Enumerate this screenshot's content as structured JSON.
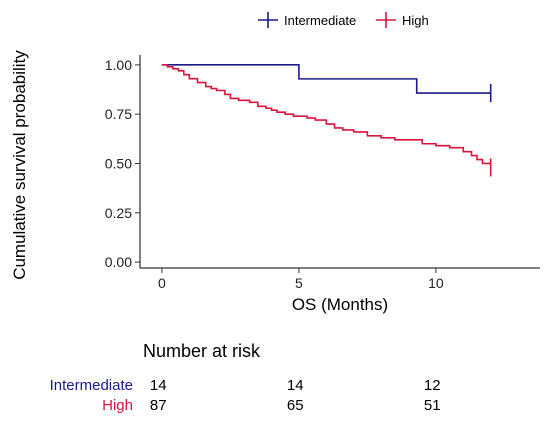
{
  "chart_data": {
    "type": "line",
    "subtype": "kaplan-meier step",
    "title": "",
    "xlabel": "OS (Months)",
    "ylabel": "Cumulative survival probability",
    "xlim": [
      -0.8,
      13.8
    ],
    "ylim": [
      -0.03,
      1.05
    ],
    "xticks": [
      0,
      5,
      10
    ],
    "xtick_labels": [
      "0",
      "5",
      "10"
    ],
    "yticks": [
      0,
      0.25,
      0.5,
      0.75,
      1
    ],
    "ytick_labels": [
      "0.00",
      "0.25",
      "0.50",
      "0.75",
      "1.00"
    ],
    "grid": false,
    "legend_position": "top",
    "censor_marker": "+",
    "series": [
      {
        "name": "Intermediate",
        "color": "#1a1a8c",
        "x": [
          0,
          5,
          9.3,
          12
        ],
        "y": [
          1.0,
          0.929,
          0.857,
          0.857
        ]
      },
      {
        "name": "High",
        "color": "#dc143c",
        "x": [
          0,
          0.2,
          0.4,
          0.6,
          0.8,
          1.0,
          1.3,
          1.6,
          1.8,
          2.0,
          2.3,
          2.5,
          2.8,
          3.2,
          3.5,
          3.8,
          4.0,
          4.2,
          4.5,
          4.8,
          5.0,
          5.3,
          5.6,
          6.0,
          6.3,
          6.6,
          7.0,
          7.5,
          8.0,
          8.5,
          9.0,
          9.5,
          10.0,
          10.5,
          11.0,
          11.3,
          11.5,
          11.7,
          12.0
        ],
        "y": [
          1.0,
          0.99,
          0.98,
          0.97,
          0.95,
          0.93,
          0.91,
          0.89,
          0.88,
          0.87,
          0.85,
          0.83,
          0.82,
          0.81,
          0.79,
          0.78,
          0.77,
          0.76,
          0.75,
          0.74,
          0.74,
          0.73,
          0.72,
          0.7,
          0.68,
          0.67,
          0.66,
          0.64,
          0.63,
          0.62,
          0.62,
          0.6,
          0.59,
          0.58,
          0.56,
          0.54,
          0.52,
          0.5,
          0.48
        ]
      }
    ],
    "risk_table": {
      "title": "Number at risk",
      "times": [
        0,
        5,
        10
      ],
      "rows": [
        {
          "name": "Intermediate",
          "color": "#1a1a8c",
          "counts": [
            "14",
            "14",
            "12"
          ]
        },
        {
          "name": "High",
          "color": "#dc143c",
          "counts": [
            "87",
            "65",
            "51"
          ]
        }
      ]
    }
  }
}
